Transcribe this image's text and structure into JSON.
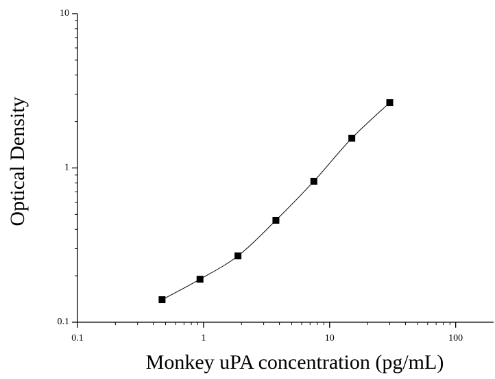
{
  "chart_data": {
    "type": "scatter",
    "xlabel": "Monkey uPA concentration (pg/mL)",
    "ylabel": "Optical Density",
    "x": [
      0.46875,
      0.9375,
      1.875,
      3.75,
      7.5,
      15,
      30
    ],
    "series": [
      {
        "color": "#000000",
        "values": [
          0.14,
          0.19,
          0.269,
          0.458,
          0.82,
          1.56,
          2.65
        ]
      }
    ],
    "xscale": "log",
    "yscale": "log",
    "xlim": [
      0.1,
      200
    ],
    "ylim": [
      0.1,
      10
    ],
    "xticks": [
      0.1,
      1,
      10,
      100
    ],
    "yticks": [
      0.1,
      1,
      10
    ],
    "fit_line": true
  }
}
